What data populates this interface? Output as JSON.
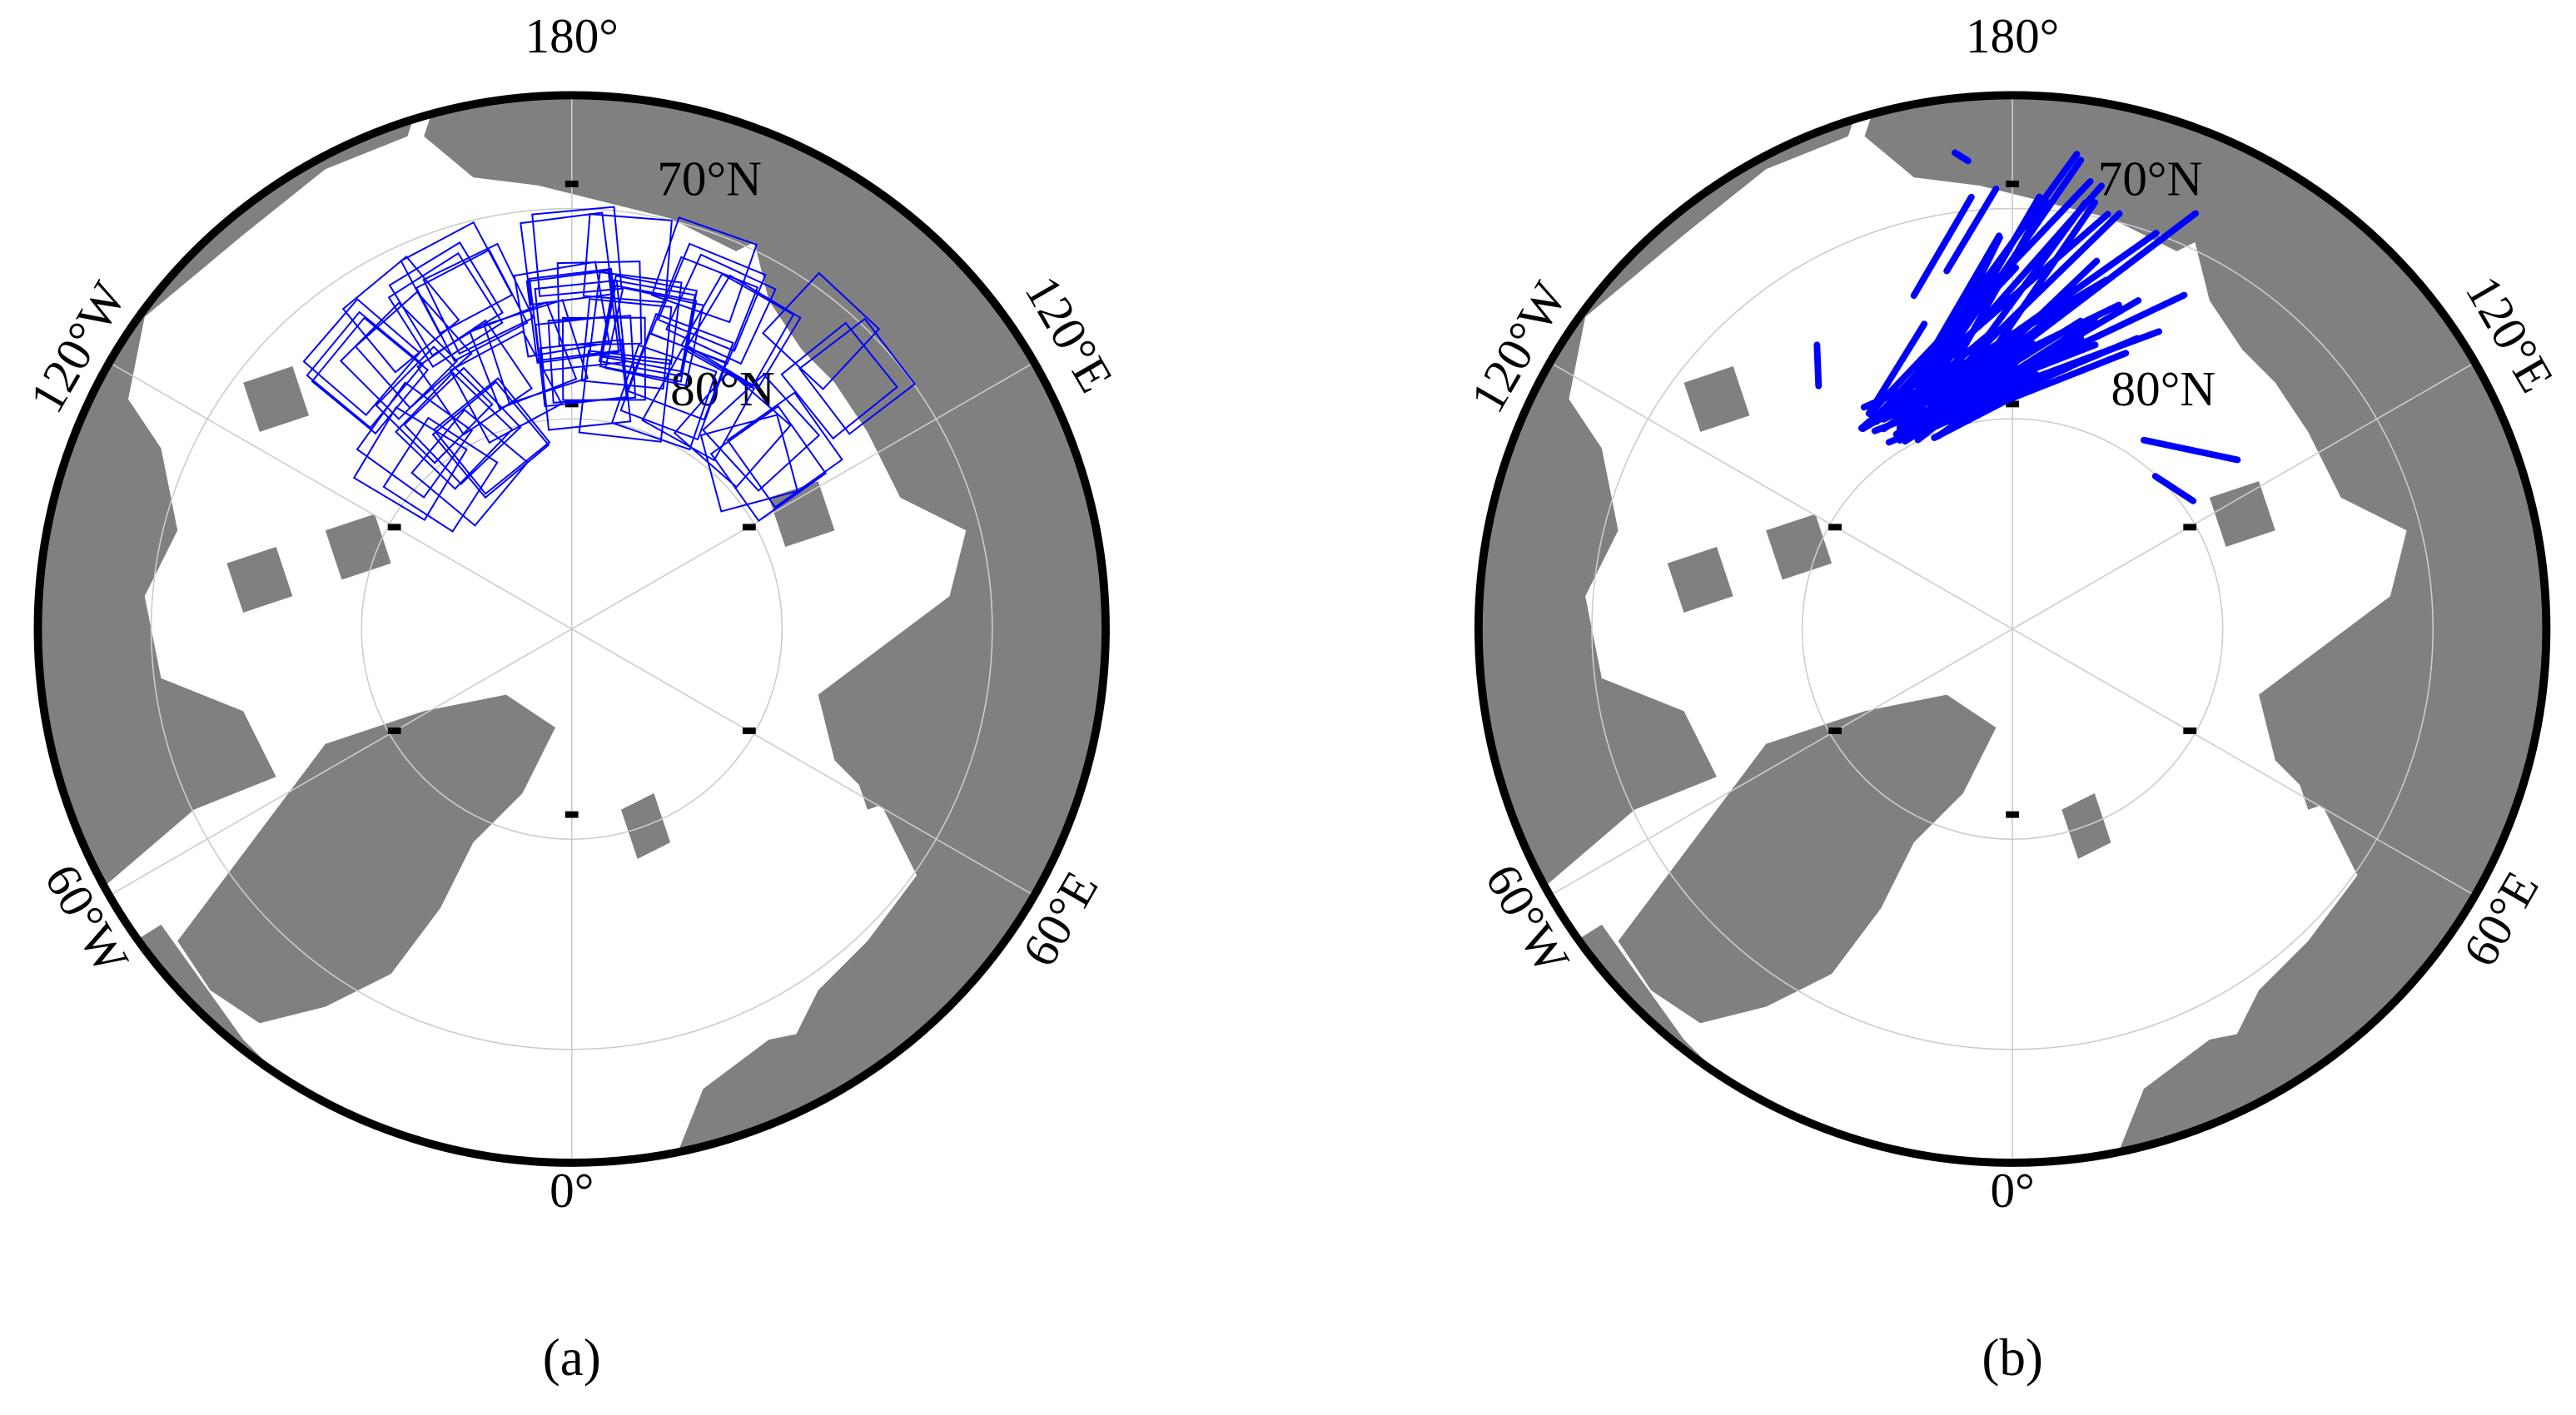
{
  "panels": [
    {
      "caption": "(a)",
      "labels": [
        "180°",
        "70°N",
        "80°N",
        "120°W",
        "120°E",
        "60°W",
        "60°E",
        "0°"
      ]
    },
    {
      "caption": "(b)",
      "labels": [
        "180°",
        "70°N",
        "80°N",
        "120°W",
        "120°E",
        "60°W",
        "60°E",
        "0°"
      ]
    }
  ]
}
